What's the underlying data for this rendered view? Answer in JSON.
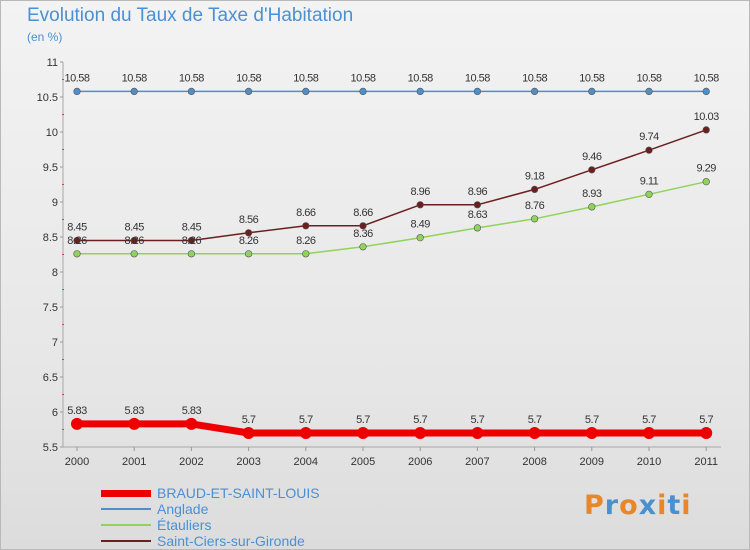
{
  "title": "Evolution du Taux de Taxe d'Habitation",
  "subtitle": "(en %)",
  "logo": "Proxiti",
  "chart_data": {
    "type": "line",
    "x": [
      "2000",
      "2001",
      "2002",
      "2003",
      "2004",
      "2005",
      "2006",
      "2007",
      "2008",
      "2009",
      "2010",
      "2011"
    ],
    "ylim": [
      5.5,
      11
    ],
    "yticks": [
      "5.5",
      "6",
      "6.5",
      "7",
      "7.5",
      "8",
      "8.5",
      "9",
      "9.5",
      "10",
      "10.5",
      "11"
    ],
    "grid": false,
    "legend_position": "bottom-left",
    "series": [
      {
        "name": "BRAUD-ET-SAINT-LOUIS",
        "color": "#ee0000",
        "values": [
          5.83,
          5.83,
          5.83,
          5.7,
          5.7,
          5.7,
          5.7,
          5.7,
          5.7,
          5.7,
          5.7,
          5.7
        ],
        "labels": [
          "5.83",
          "5.83",
          "5.83",
          "5.7",
          "5.7",
          "5.7",
          "5.7",
          "5.7",
          "5.7",
          "5.7",
          "5.7",
          "5.7"
        ]
      },
      {
        "name": "Anglade",
        "color": "#4a90cf",
        "values": [
          10.58,
          10.58,
          10.58,
          10.58,
          10.58,
          10.58,
          10.58,
          10.58,
          10.58,
          10.58,
          10.58,
          10.58
        ],
        "labels": [
          "10.58",
          "10.58",
          "10.58",
          "10.58",
          "10.58",
          "10.58",
          "10.58",
          "10.58",
          "10.58",
          "10.58",
          "10.58",
          "10.58"
        ]
      },
      {
        "name": "Étauliers",
        "color": "#8fd35a",
        "values": [
          8.26,
          8.26,
          8.26,
          8.26,
          8.26,
          8.36,
          8.49,
          8.63,
          8.76,
          8.93,
          9.11,
          9.29
        ],
        "labels": [
          "8.26",
          "8.26",
          "8.26",
          "8.26",
          "8.26",
          "8.36",
          "8.49",
          "8.63",
          "8.76",
          "8.93",
          "9.11",
          "9.29"
        ]
      },
      {
        "name": "Saint-Ciers-sur-Gironde",
        "color": "#6b1f1f",
        "values": [
          8.45,
          8.45,
          8.45,
          8.56,
          8.66,
          8.66,
          8.96,
          8.96,
          9.18,
          9.46,
          9.74,
          10.03
        ],
        "labels": [
          "8.45",
          "8.45",
          "8.45",
          "8.56",
          "8.66",
          "8.66",
          "8.96",
          "8.96",
          "9.18",
          "9.46",
          "9.74",
          "10.03"
        ]
      }
    ]
  },
  "legend": [
    {
      "label": "BRAUD-ET-SAINT-LOUIS",
      "color": "#ee0000"
    },
    {
      "label": "Anglade",
      "color": "#4a90cf"
    },
    {
      "label": "Étauliers",
      "color": "#8fd35a"
    },
    {
      "label": "Saint-Ciers-sur-Gironde",
      "color": "#6b1f1f"
    }
  ],
  "logo_colors": [
    "#e8862a",
    "#4a90cf",
    "#e8862a",
    "#4a90cf",
    "#e8862a",
    "#4a90cf",
    "#e8862a"
  ]
}
